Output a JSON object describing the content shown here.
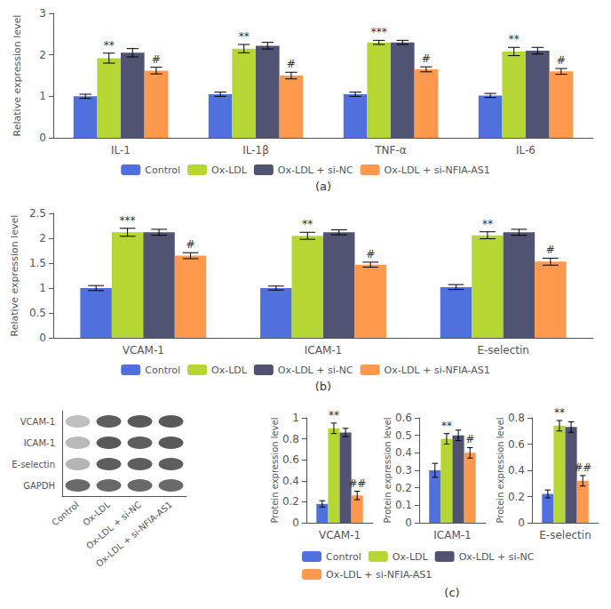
{
  "chart_data": [
    {
      "type": "bar",
      "title": "(a)",
      "categories": [
        "IL-1",
        "IL-1β",
        "TNF-α",
        "IL-6"
      ],
      "series": [
        {
          "name": "Control",
          "values": [
            1.0,
            1.05,
            1.05,
            1.02
          ],
          "errors": [
            0.05,
            0.05,
            0.05,
            0.05
          ]
        },
        {
          "name": "Ox-LDL",
          "values": [
            1.92,
            2.15,
            2.3,
            2.08
          ],
          "errors": [
            0.12,
            0.1,
            0.05,
            0.1
          ],
          "annotations": [
            "**",
            "**",
            "***",
            "**"
          ]
        },
        {
          "name": "Ox-LDL + si-NC",
          "values": [
            2.05,
            2.22,
            2.3,
            2.1
          ],
          "errors": [
            0.1,
            0.08,
            0.05,
            0.08
          ]
        },
        {
          "name": "Ox-LDL + si-NFIA-AS1",
          "values": [
            1.62,
            1.5,
            1.65,
            1.6
          ],
          "errors": [
            0.08,
            0.08,
            0.06,
            0.07
          ],
          "annotations": [
            "#",
            "#",
            "#",
            "#"
          ]
        }
      ],
      "ylabel": "Relative expression level",
      "ylim": [
        0,
        3
      ],
      "yticks": [
        0,
        1,
        2,
        3
      ],
      "grid": false,
      "legend": "bottom"
    },
    {
      "type": "bar",
      "title": "(b)",
      "categories": [
        "VCAM-1",
        "ICAM-1",
        "E-selectin"
      ],
      "series": [
        {
          "name": "Control",
          "values": [
            1.0,
            1.0,
            1.02
          ],
          "errors": [
            0.05,
            0.04,
            0.05
          ]
        },
        {
          "name": "Ox-LDL",
          "values": [
            2.12,
            2.05,
            2.06
          ],
          "errors": [
            0.08,
            0.07,
            0.07
          ],
          "annotations": [
            "***",
            "**",
            "**"
          ]
        },
        {
          "name": "Ox-LDL + si-NC",
          "values": [
            2.12,
            2.12,
            2.12
          ],
          "errors": [
            0.06,
            0.05,
            0.06
          ]
        },
        {
          "name": "Ox-LDL + si-NFIA-AS1",
          "values": [
            1.65,
            1.47,
            1.53
          ],
          "errors": [
            0.06,
            0.05,
            0.07
          ],
          "annotations": [
            "#",
            "#",
            "#"
          ]
        }
      ],
      "ylabel": "Relative expression level",
      "ylim": [
        0,
        2.5
      ],
      "yticks": [
        0,
        0.5,
        1,
        1.5,
        2,
        2.5
      ],
      "grid": false,
      "legend": "bottom"
    },
    {
      "type": "blot",
      "categories": [
        "Control",
        "Ox-LDL",
        "Ox-LDL + si-NC",
        "Ox-LDL + si-NFIA-AS1"
      ],
      "series": [
        {
          "name": "VCAM-1",
          "colors": [
            "#b8b8b8",
            "#4d4d4d",
            "#474747",
            "#474747"
          ]
        },
        {
          "name": "ICAM-1",
          "colors": [
            "#b3b3b3",
            "#474747",
            "#4d4d4d",
            "#474747"
          ]
        },
        {
          "name": "E-selectin",
          "colors": [
            "#adadad",
            "#4d4d4d",
            "#4d4d4d",
            "#4d4d4d"
          ]
        },
        {
          "name": "GAPDH",
          "colors": [
            "#595959",
            "#595959",
            "#595959",
            "#595959"
          ]
        }
      ]
    },
    {
      "type": "bar",
      "categories": [
        "VCAM-1"
      ],
      "series": [
        {
          "name": "Control",
          "values": [
            0.18
          ],
          "errors": [
            0.03
          ]
        },
        {
          "name": "Ox-LDL",
          "values": [
            0.9
          ],
          "errors": [
            0.05
          ],
          "annotations": [
            "**"
          ]
        },
        {
          "name": "Ox-LDL + si-NC",
          "values": [
            0.86
          ],
          "errors": [
            0.04
          ]
        },
        {
          "name": "Ox-LDL + si-NFIA-AS1",
          "values": [
            0.26
          ],
          "errors": [
            0.04
          ],
          "annotations": [
            "##"
          ]
        }
      ],
      "ylabel": "Protein expression level",
      "ylim": [
        0,
        1.0
      ],
      "yticks": [
        0,
        0.2,
        0.4,
        0.6,
        0.8,
        1
      ],
      "grid": false
    },
    {
      "type": "bar",
      "title": "(c)",
      "categories": [
        "ICAM-1"
      ],
      "series": [
        {
          "name": "Control",
          "values": [
            0.3
          ],
          "errors": [
            0.04
          ]
        },
        {
          "name": "Ox-LDL",
          "values": [
            0.48
          ],
          "errors": [
            0.03
          ],
          "annotations": [
            "**"
          ]
        },
        {
          "name": "Ox-LDL + si-NC",
          "values": [
            0.5
          ],
          "errors": [
            0.03
          ]
        },
        {
          "name": "Ox-LDL + si-NFIA-AS1",
          "values": [
            0.4
          ],
          "errors": [
            0.03
          ],
          "annotations": [
            "#"
          ]
        }
      ],
      "ylabel": "Protein expression level",
      "ylim": [
        0,
        0.6
      ],
      "yticks": [
        0,
        0.1,
        0.2,
        0.3,
        0.4,
        0.5,
        0.6
      ],
      "grid": false,
      "legend": "bottom"
    },
    {
      "type": "bar",
      "categories": [
        "E-selectin"
      ],
      "series": [
        {
          "name": "Control",
          "values": [
            0.22
          ],
          "errors": [
            0.03
          ]
        },
        {
          "name": "Ox-LDL",
          "values": [
            0.74
          ],
          "errors": [
            0.04
          ],
          "annotations": [
            "**"
          ]
        },
        {
          "name": "Ox-LDL + si-NC",
          "values": [
            0.73
          ],
          "errors": [
            0.04
          ]
        },
        {
          "name": "Ox-LDL + si-NFIA-AS1",
          "values": [
            0.32
          ],
          "errors": [
            0.04
          ],
          "annotations": [
            "##"
          ]
        }
      ],
      "ylabel": "Protein expression level",
      "ylim": [
        0,
        0.8
      ],
      "yticks": [
        0,
        0.2,
        0.4,
        0.6,
        0.8
      ],
      "grid": false
    }
  ]
}
